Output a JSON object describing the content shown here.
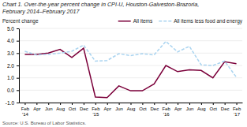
{
  "chart_data": {
    "type": "line",
    "title": "Chart 1. Over-the-year percent change in CPI-U, Houston-Galveston-Brazoria,\nFebruary 2014–February 2017",
    "y_label": "Percent change",
    "annotations": [
      "Source: U.S. Bureau of Labor Statistics."
    ],
    "categories": [
      "Feb\n'14",
      "Apr",
      "Jun",
      "Aug",
      "Oct",
      "Dec",
      "Feb\n'15",
      "Apr",
      "Jun",
      "Aug",
      "Oct",
      "Dec",
      "Feb\n'16",
      "Apr",
      "Jun",
      "Aug",
      "Oct",
      "Dec",
      "Feb\n'17"
    ],
    "series": [
      {
        "name": "All items",
        "color": "#7b003a",
        "line_style": "solid",
        "values": [
          2.9,
          2.9,
          3.0,
          3.3,
          2.65,
          3.4,
          -0.55,
          -0.6,
          0.35,
          -0.05,
          -0.05,
          0.5,
          2.0,
          1.5,
          1.65,
          1.6,
          1.0,
          2.3,
          2.15
        ]
      },
      {
        "name": "All items less food and energy",
        "color": "#aad4f0",
        "line_style": "dashed",
        "values": [
          3.15,
          2.85,
          2.9,
          3.0,
          3.15,
          3.65,
          2.35,
          2.4,
          2.95,
          2.8,
          2.95,
          2.85,
          3.95,
          3.1,
          3.55,
          2.05,
          2.0,
          2.35,
          1.05
        ]
      }
    ],
    "ylim": [
      -1.0,
      5.0
    ],
    "yticks": [
      {
        "value": -1.0,
        "label": "-1.0"
      },
      {
        "value": 0.0,
        "label": "0.0"
      },
      {
        "value": 1.0,
        "label": "1.0"
      },
      {
        "value": 2.0,
        "label": "2.0"
      },
      {
        "value": 3.0,
        "label": "3.0"
      },
      {
        "value": 4.0,
        "label": "4.0"
      },
      {
        "value": 5.0,
        "label": "5.0"
      }
    ],
    "grid": true,
    "legend": "upper right"
  }
}
